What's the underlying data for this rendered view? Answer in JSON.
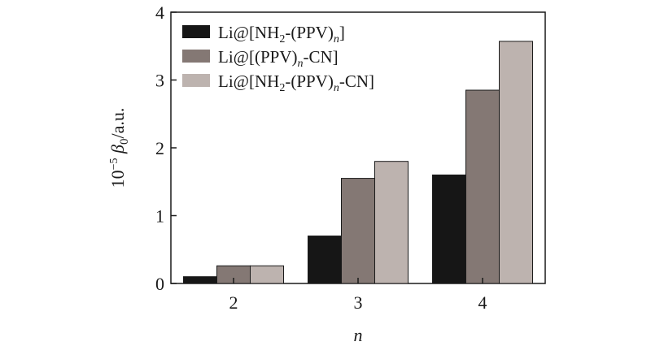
{
  "chart_data": {
    "type": "bar",
    "categories": [
      "2",
      "3",
      "4"
    ],
    "series": [
      {
        "name": "Li@[NH₂-(PPV)ₙ]",
        "values": [
          0.1,
          0.7,
          1.6
        ],
        "color": "#161616"
      },
      {
        "name": "Li@[(PPV)ₙ-CN]",
        "values": [
          0.26,
          1.55,
          2.85
        ],
        "color": "#847874"
      },
      {
        "name": "Li@[NH₂-(PPV)ₙ-CN]",
        "values": [
          0.26,
          1.8,
          3.57
        ],
        "color": "#bdb3af"
      }
    ],
    "xlabel": "n",
    "ylabel": "10⁻⁵ β₀/a.u.",
    "ylim": [
      0,
      4
    ],
    "yticks": [
      "0",
      "1",
      "2",
      "3",
      "4"
    ],
    "grid": false,
    "legend": "top-left"
  }
}
